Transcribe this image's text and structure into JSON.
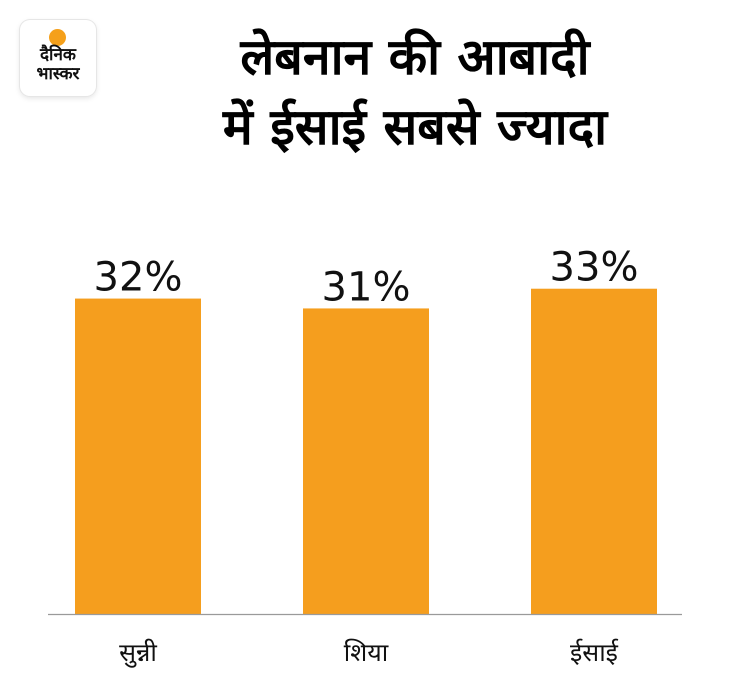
{
  "logo": {
    "line1": "दैनिक",
    "line2": "भास्कर"
  },
  "title_lines": [
    "लेबनान की आबादी",
    "में ईसाई सबसे ज्यादा"
  ],
  "colors": {
    "bar": "#f59e1e",
    "axis": "#9a9a9a",
    "text": "#111111",
    "logo_sun": "#f5a01a"
  },
  "chart_data": {
    "type": "bar",
    "title": "लेबनान की आबादी में ईसाई सबसे ज्यादा",
    "categories": [
      "सुन्नी",
      "शिया",
      "ईसाई"
    ],
    "values": [
      32,
      31,
      33
    ],
    "value_labels": [
      "32%",
      "31%",
      "33%"
    ],
    "unit": "%",
    "ylim": [
      0,
      42
    ],
    "grid": false,
    "legend": "none"
  }
}
